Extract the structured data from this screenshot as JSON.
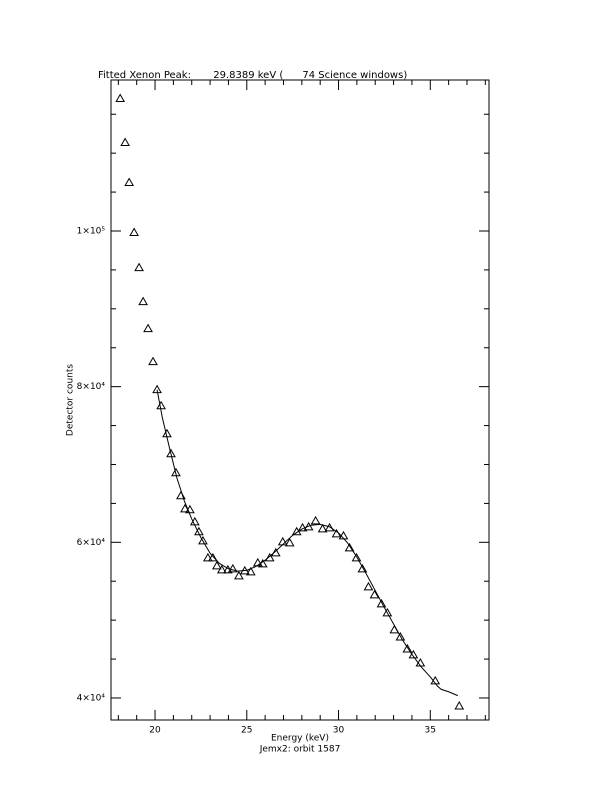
{
  "chart_data": {
    "type": "scatter",
    "title": "Fitted Xenon Peak:       29.8389 keV (      74 Science windows)",
    "x_label": "Energy (keV)",
    "y_label": "Detector counts",
    "subtitle": "Jemx2: orbit 1587",
    "xlim": [
      17.6,
      38.2
    ],
    "ylim": [
      37170,
      119400
    ],
    "xticks": [
      20,
      25,
      30,
      35
    ],
    "yticks": [
      {
        "value": 40000,
        "label": "4×10⁴"
      },
      {
        "value": 60000,
        "label": "6×10⁴"
      },
      {
        "value": 80000,
        "label": "8×10⁴"
      },
      {
        "value": 100000,
        "label": "1×10⁵"
      }
    ],
    "xminorticks": [
      18,
      19,
      21,
      22,
      23,
      24,
      26,
      27,
      28,
      29,
      31,
      32,
      33,
      34,
      36,
      37,
      38
    ],
    "yminorticks": [
      45000,
      50000,
      55000,
      65000,
      70000,
      75000,
      85000,
      90000,
      95000,
      105000,
      110000,
      115000
    ],
    "grid": false,
    "color": "#000000",
    "series": [
      {
        "mode": "markers",
        "color": "#000000",
        "x": [
          18.1,
          18.37,
          18.59,
          18.86,
          19.13,
          19.35,
          19.62,
          19.89,
          20.11,
          20.33,
          20.65,
          20.87,
          21.14,
          21.41,
          21.63,
          21.9,
          22.17,
          22.39,
          22.61,
          22.88,
          23.15,
          23.37,
          23.64,
          23.97,
          24.24,
          24.57,
          24.89,
          25.22,
          25.6,
          25.87,
          26.25,
          26.58,
          26.96,
          27.34,
          27.72,
          28.04,
          28.37,
          28.75,
          29.13,
          29.51,
          29.89,
          30.27,
          30.6,
          30.98,
          31.3,
          31.63,
          31.96,
          32.34,
          32.66,
          33.04,
          33.37,
          33.75,
          34.08,
          34.46,
          35.27,
          36.58
        ],
        "values": [
          117030,
          111370,
          106230,
          99800,
          95300,
          90930,
          87450,
          83210,
          79610,
          77550,
          73950,
          71380,
          68930,
          65980,
          64300,
          64180,
          62630,
          61350,
          60190,
          58000,
          58000,
          56980,
          56460,
          56460,
          56590,
          55690,
          56330,
          56200,
          57360,
          57230,
          58000,
          58650,
          60060,
          59930,
          61350,
          61860,
          61990,
          62760,
          61730,
          61860,
          61090,
          60830,
          59290,
          58000,
          56590,
          54270,
          53250,
          52090,
          50930,
          48750,
          47840,
          46300,
          45530,
          44500,
          42190,
          38970
        ]
      },
      {
        "mode": "line",
        "color": "#000000",
        "x": [
          20.11,
          20.4,
          20.8,
          21.2,
          21.6,
          22.0,
          22.5,
          23.0,
          23.5,
          24.0,
          24.5,
          25.0,
          25.5,
          26.0,
          26.5,
          27.0,
          27.5,
          28.0,
          28.5,
          29.0,
          29.5,
          30.0,
          30.5,
          31.0,
          31.5,
          32.0,
          32.5,
          33.0,
          33.5,
          34.0,
          34.5,
          35.0,
          35.4,
          35.6,
          36.0,
          36.5
        ],
        "values": [
          79600,
          76000,
          72000,
          68200,
          65300,
          63000,
          60600,
          58600,
          57300,
          56600,
          56300,
          56400,
          56900,
          57700,
          58700,
          59800,
          60900,
          61700,
          62200,
          62300,
          62000,
          61200,
          59900,
          58100,
          56000,
          53800,
          51600,
          49500,
          47400,
          45600,
          44000,
          42700,
          41500,
          41100,
          40800,
          40300
        ]
      }
    ]
  }
}
